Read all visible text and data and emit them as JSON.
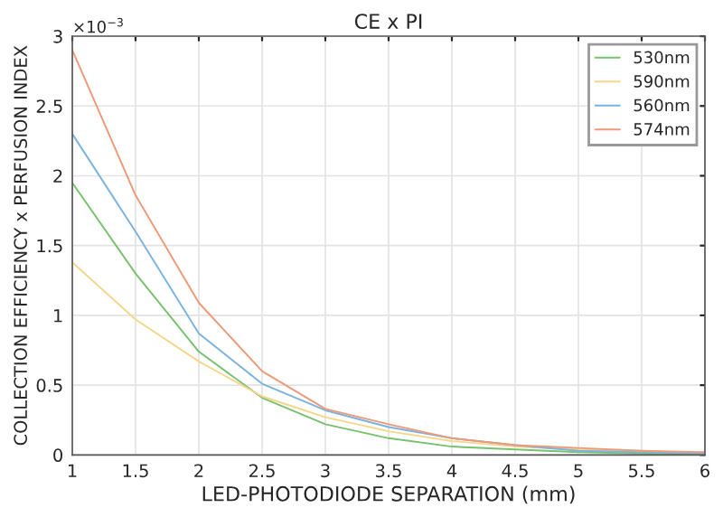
{
  "chart_data": {
    "type": "line",
    "title": "CE x PI",
    "xlabel": "LED-PHOTODIODE SEPARATION (mm)",
    "ylabel": "COLLECTION EFFICIENCY x PERFUSION INDEX",
    "annotations": [
      "×10$^{−3}$"
    ],
    "x": [
      1,
      1.5,
      2,
      2.5,
      3,
      3.5,
      4,
      4.5,
      5,
      5.5,
      6
    ],
    "series": [
      {
        "name": "530nm",
        "color": "#77c26d",
        "values": [
          1.95,
          1.3,
          0.74,
          0.41,
          0.22,
          0.12,
          0.06,
          0.04,
          0.02,
          0.01,
          0
        ]
      },
      {
        "name": "590nm",
        "color": "#f5d68a",
        "values": [
          1.38,
          0.97,
          0.67,
          0.42,
          0.27,
          0.17,
          0.1,
          0.06,
          0.04,
          0.03,
          0.01
        ]
      },
      {
        "name": "560nm",
        "color": "#7ab3e0",
        "values": [
          2.3,
          1.6,
          0.87,
          0.51,
          0.32,
          0.2,
          0.12,
          0.07,
          0.03,
          0.02,
          0.01
        ]
      },
      {
        "name": "574nm",
        "color": "#ee9977",
        "values": [
          2.9,
          1.86,
          1.09,
          0.6,
          0.33,
          0.22,
          0.12,
          0.07,
          0.05,
          0.03,
          0.02
        ]
      }
    ],
    "xlim": [
      1,
      6
    ],
    "xticks": [
      1,
      1.5,
      2,
      2.5,
      3,
      3.5,
      4,
      4.5,
      5,
      5.5,
      6
    ],
    "ylim": [
      0,
      3
    ],
    "yticks": [
      0,
      0.5,
      1,
      1.5,
      2,
      2.5,
      3
    ],
    "grid": true,
    "legend": "top right"
  }
}
